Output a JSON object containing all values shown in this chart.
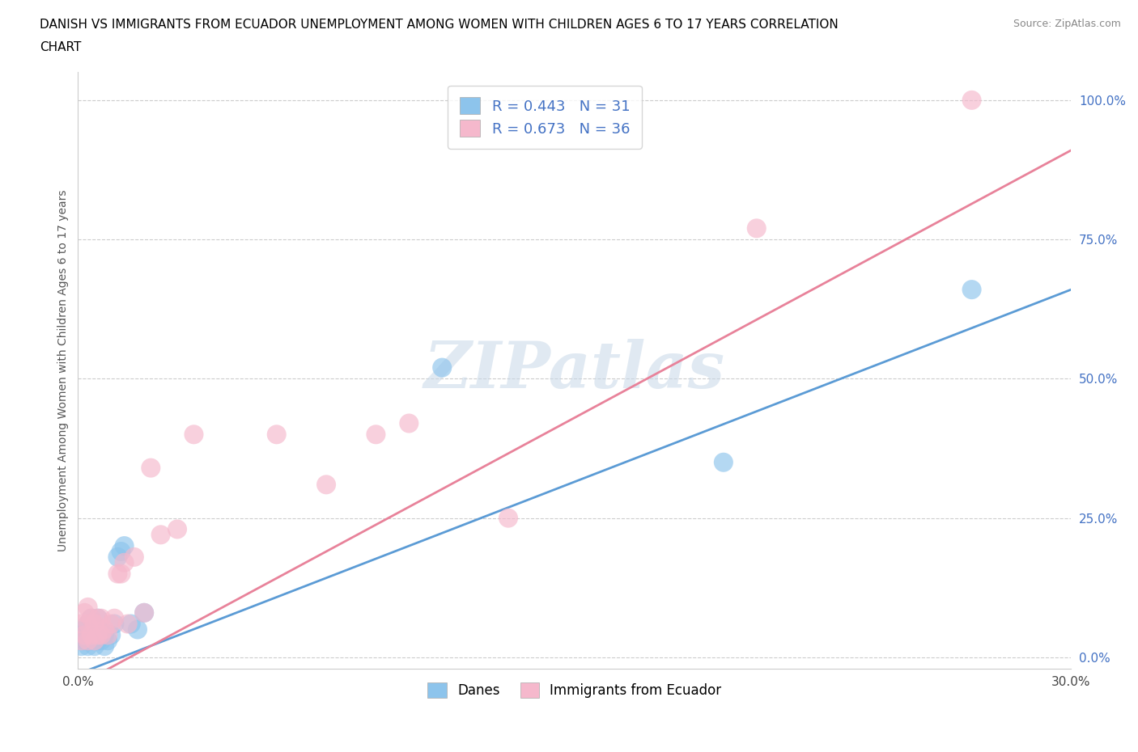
{
  "title_line1": "DANISH VS IMMIGRANTS FROM ECUADOR UNEMPLOYMENT AMONG WOMEN WITH CHILDREN AGES 6 TO 17 YEARS CORRELATION",
  "title_line2": "CHART",
  "source": "Source: ZipAtlas.com",
  "ylabel": "Unemployment Among Women with Children Ages 6 to 17 years",
  "xlim": [
    0.0,
    0.3
  ],
  "ylim": [
    -0.02,
    1.05
  ],
  "x_ticks": [
    0.0,
    0.05,
    0.1,
    0.15,
    0.2,
    0.25,
    0.3
  ],
  "x_tick_labels": [
    "0.0%",
    "",
    "",
    "",
    "",
    "",
    "30.0%"
  ],
  "y_ticks": [
    0.0,
    0.25,
    0.5,
    0.75,
    1.0
  ],
  "y_tick_labels": [
    "0.0%",
    "25.0%",
    "50.0%",
    "75.0%",
    "100.0%"
  ],
  "blue_color": "#8DC4EC",
  "pink_color": "#F5B8CC",
  "blue_line_color": "#5B9BD5",
  "pink_line_color": "#E8829A",
  "watermark_text": "ZIPatlas",
  "danes_label": "Danes",
  "immigrants_label": "Immigrants from Ecuador",
  "danes_x": [
    0.001,
    0.001,
    0.002,
    0.002,
    0.003,
    0.003,
    0.003,
    0.004,
    0.004,
    0.004,
    0.005,
    0.005,
    0.006,
    0.006,
    0.006,
    0.007,
    0.007,
    0.008,
    0.008,
    0.009,
    0.01,
    0.011,
    0.012,
    0.013,
    0.014,
    0.016,
    0.018,
    0.02,
    0.11,
    0.195,
    0.27
  ],
  "danes_y": [
    0.02,
    0.04,
    0.03,
    0.05,
    0.02,
    0.04,
    0.06,
    0.03,
    0.05,
    0.07,
    0.02,
    0.04,
    0.03,
    0.05,
    0.07,
    0.03,
    0.05,
    0.02,
    0.04,
    0.03,
    0.04,
    0.06,
    0.18,
    0.19,
    0.2,
    0.06,
    0.05,
    0.08,
    0.52,
    0.35,
    0.66
  ],
  "ecuador_x": [
    0.001,
    0.001,
    0.002,
    0.002,
    0.003,
    0.003,
    0.003,
    0.004,
    0.004,
    0.005,
    0.005,
    0.006,
    0.006,
    0.007,
    0.007,
    0.008,
    0.009,
    0.01,
    0.011,
    0.012,
    0.013,
    0.014,
    0.015,
    0.017,
    0.02,
    0.022,
    0.025,
    0.03,
    0.035,
    0.06,
    0.075,
    0.09,
    0.1,
    0.13,
    0.205,
    0.27
  ],
  "ecuador_y": [
    0.03,
    0.06,
    0.04,
    0.08,
    0.03,
    0.06,
    0.09,
    0.04,
    0.07,
    0.03,
    0.06,
    0.04,
    0.07,
    0.04,
    0.07,
    0.05,
    0.04,
    0.06,
    0.07,
    0.15,
    0.15,
    0.17,
    0.06,
    0.18,
    0.08,
    0.34,
    0.22,
    0.23,
    0.4,
    0.4,
    0.31,
    0.4,
    0.42,
    0.25,
    0.77,
    1.0
  ],
  "blue_intercept": -0.03,
  "blue_slope": 2.3,
  "pink_intercept": -0.05,
  "pink_slope": 3.2
}
